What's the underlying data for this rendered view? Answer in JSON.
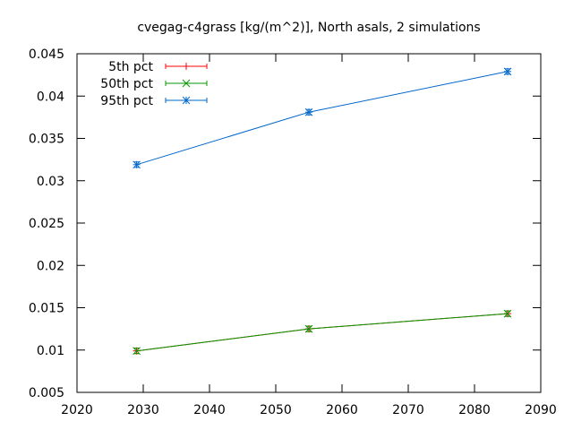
{
  "chart_data": {
    "type": "line",
    "title": "cvegag-c4grass [kg/(m^2)], North asals, 2 simulations",
    "xlabel": "",
    "ylabel": "",
    "xlim": [
      2020,
      2090
    ],
    "ylim": [
      0.005,
      0.045
    ],
    "x_ticks": [
      "2020",
      "2030",
      "2040",
      "2050",
      "2060",
      "2070",
      "2080",
      "2090"
    ],
    "y_ticks": [
      "0.005",
      "0.01",
      "0.015",
      "0.02",
      "0.025",
      "0.03",
      "0.035",
      "0.04",
      "0.045"
    ],
    "x": [
      2029,
      2055,
      2085
    ],
    "legend_position": "top-left",
    "grid": false,
    "series": [
      {
        "name": "5th pct",
        "color": "#ff0000",
        "marker": "plus",
        "values": [
          0.0099,
          0.0125,
          0.0143
        ]
      },
      {
        "name": "50th pct",
        "color": "#009900",
        "marker": "cross",
        "values": [
          0.0099,
          0.0125,
          0.0143
        ]
      },
      {
        "name": "95th pct",
        "color": "#0066cc",
        "marker": "star",
        "values": [
          0.0319,
          0.0381,
          0.0429
        ]
      }
    ]
  }
}
